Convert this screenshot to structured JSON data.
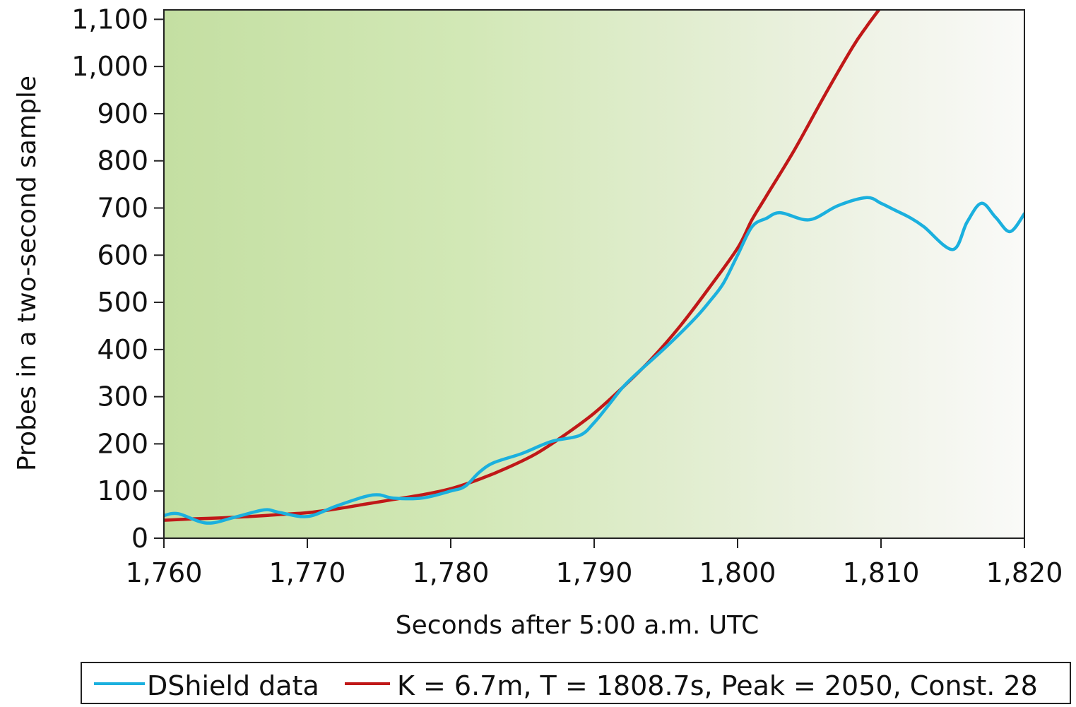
{
  "chart_data": {
    "type": "line",
    "xlabel": "Seconds after 5:00 a.m. UTC",
    "ylabel": "Probes in a two-second sample",
    "xlim": [
      1760,
      1820
    ],
    "ylim": [
      0,
      1120
    ],
    "x_ticks": [
      1760,
      1770,
      1780,
      1790,
      1800,
      1810,
      1820
    ],
    "x_tick_labels": [
      "1,760",
      "1,770",
      "1,780",
      "1,790",
      "1,800",
      "1,810",
      "1,820"
    ],
    "y_ticks": [
      0,
      100,
      200,
      300,
      400,
      500,
      600,
      700,
      800,
      900,
      1000,
      1100
    ],
    "y_tick_labels": [
      "0",
      "100",
      "200",
      "300",
      "400",
      "500",
      "600",
      "700",
      "800",
      "900",
      "1,000",
      "1,100"
    ],
    "grid": false,
    "legend_position": "bottom",
    "background": "green-to-white horizontal gradient",
    "series": [
      {
        "name": "DShield data",
        "color": "#1BB0DE",
        "x": [
          1760,
          1761,
          1763,
          1765,
          1767,
          1768,
          1770,
          1772,
          1774,
          1775,
          1776,
          1778,
          1780,
          1781,
          1782,
          1783,
          1785,
          1787,
          1789,
          1790,
          1791,
          1792,
          1793,
          1795,
          1797,
          1798,
          1799,
          1800,
          1801,
          1802,
          1803,
          1805,
          1807,
          1809,
          1810,
          1811,
          1812,
          1813,
          1815,
          1816,
          1817,
          1818,
          1819,
          1820
        ],
        "y": [
          48,
          52,
          32,
          45,
          60,
          55,
          46,
          68,
          88,
          92,
          85,
          85,
          100,
          110,
          140,
          160,
          180,
          205,
          218,
          245,
          282,
          320,
          350,
          405,
          465,
          500,
          540,
          600,
          660,
          678,
          690,
          675,
          705,
          722,
          710,
          695,
          680,
          660,
          612,
          670,
          710,
          680,
          650,
          688
        ]
      },
      {
        "name": "K = 6.7m, T = 1808.7s, Peak = 2050, Const. 28",
        "color": "#C01818",
        "x": [
          1760,
          1762,
          1764,
          1766,
          1768,
          1770,
          1772,
          1774,
          1776,
          1778,
          1780,
          1782,
          1784,
          1786,
          1788,
          1790,
          1792,
          1794,
          1796,
          1798,
          1800,
          1801,
          1802,
          1804,
          1806,
          1808,
          1809,
          1809.9
        ],
        "y": [
          38,
          41,
          43,
          46,
          50,
          54,
          62,
          72,
          82,
          92,
          105,
          125,
          150,
          180,
          220,
          265,
          320,
          380,
          450,
          530,
          615,
          675,
          725,
          825,
          935,
          1040,
          1085,
          1122
        ]
      }
    ]
  },
  "legend": {
    "items": [
      {
        "label": "DShield data",
        "color": "#1BB0DE"
      },
      {
        "label": "K = 6.7m, T = 1808.7s, Peak = 2050, Const. 28",
        "color": "#C01818"
      }
    ]
  }
}
